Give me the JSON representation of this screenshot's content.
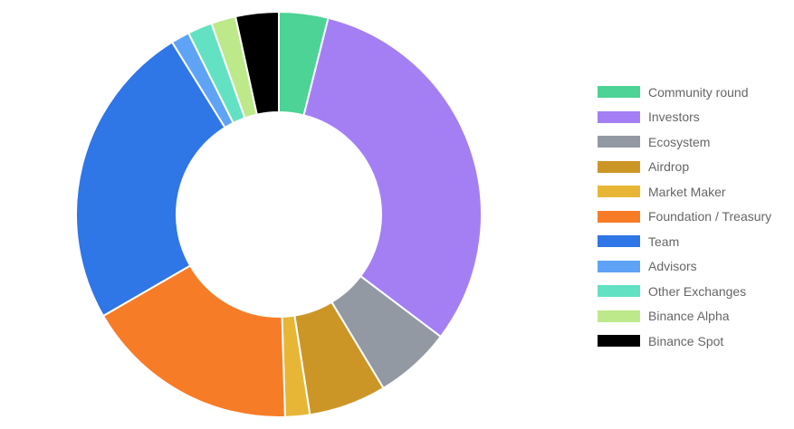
{
  "chart_data": {
    "type": "pie",
    "variant": "doughnut",
    "legend_position": "right",
    "series": [
      {
        "name": "Community round",
        "value": 4.0,
        "color": "#4dd395"
      },
      {
        "name": "Investors",
        "value": 32.0,
        "color": "#a47ff3"
      },
      {
        "name": "Ecosystem",
        "value": 6.2,
        "color": "#9399a3"
      },
      {
        "name": "Airdrop",
        "value": 6.3,
        "color": "#cc9627"
      },
      {
        "name": "Market Maker",
        "value": 2.0,
        "color": "#e8b637"
      },
      {
        "name": "Foundation / Treasury",
        "value": 17.5,
        "color": "#f77c27"
      },
      {
        "name": "Team",
        "value": 25.0,
        "color": "#2f76e6"
      },
      {
        "name": "Advisors",
        "value": 1.5,
        "color": "#5fa3f7"
      },
      {
        "name": "Other Exchanges",
        "value": 2.0,
        "color": "#62e2c2"
      },
      {
        "name": "Binance Alpha",
        "value": 2.0,
        "color": "#bde98b"
      },
      {
        "name": "Binance Spot",
        "value": 3.5,
        "color": "#000000"
      }
    ]
  }
}
